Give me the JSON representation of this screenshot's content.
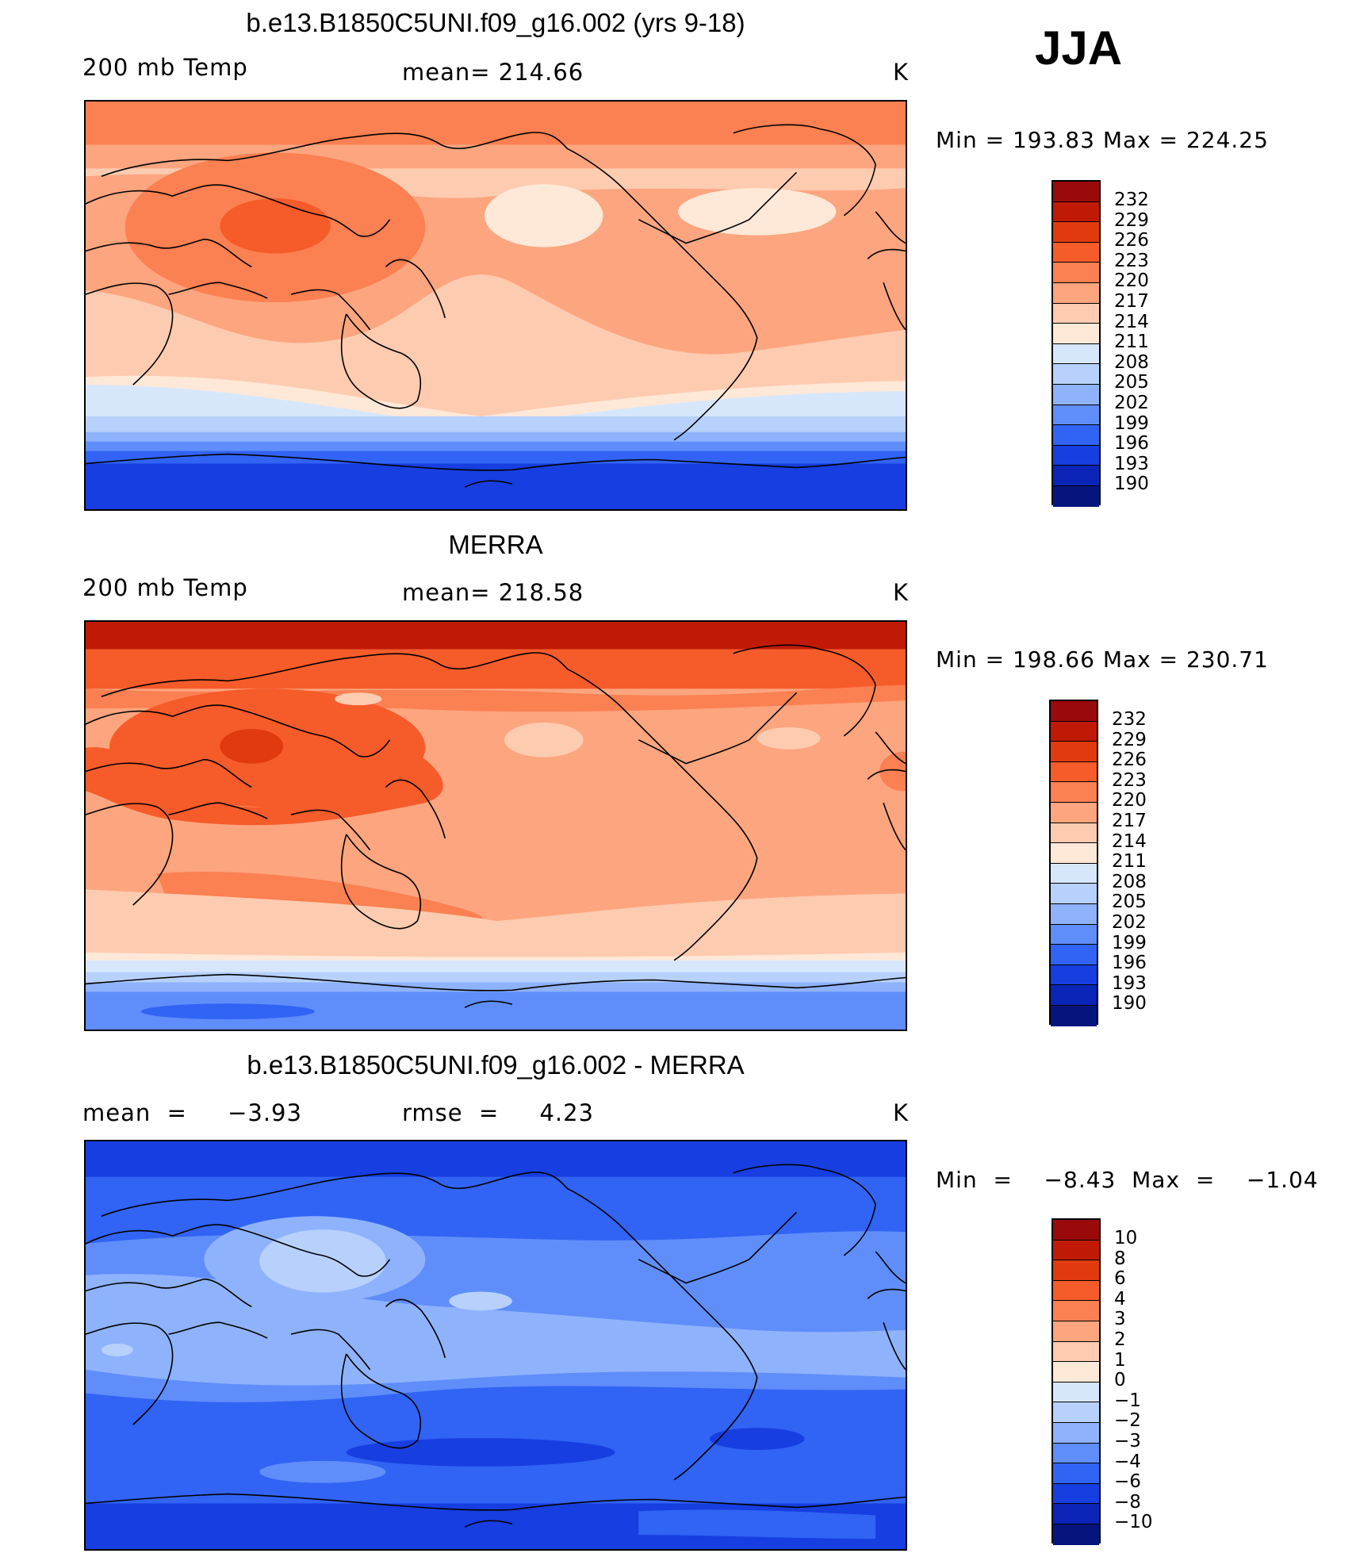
{
  "season": "JJA",
  "panels": [
    {
      "title": "b.e13.B1850C5UNI.f09_g16.002 (yrs 9-18)",
      "variable": "200 mb Temp",
      "stat_text": "mean=  214.66",
      "units": "K",
      "minmax": "Min  =  193.83  Max  =  224.25",
      "colorbar_levels": [
        "232",
        "229",
        "226",
        "223",
        "220",
        "217",
        "214",
        "211",
        "208",
        "205",
        "202",
        "199",
        "196",
        "193",
        "190"
      ]
    },
    {
      "title": "MERRA",
      "variable": "200 mb Temp",
      "stat_text": "mean=  218.58",
      "units": "K",
      "minmax": "Min  =  198.66  Max  =  230.71",
      "colorbar_levels": [
        "232",
        "229",
        "226",
        "223",
        "220",
        "217",
        "214",
        "211",
        "208",
        "205",
        "202",
        "199",
        "196",
        "193",
        "190"
      ]
    },
    {
      "title": "b.e13.B1850C5UNI.f09_g16.002 - MERRA",
      "mean_text": "mean  =     −3.93",
      "rmse_text": "rmse  =     4.23",
      "units": "K",
      "minmax": "Min  =    −8.43  Max  =    −1.04",
      "colorbar_levels": [
        "10",
        "8",
        "6",
        "4",
        "3",
        "2",
        "1",
        "0",
        "−1",
        "−2",
        "−3",
        "−4",
        "−6",
        "−8",
        "−10"
      ]
    }
  ],
  "colorbar_colors": [
    "#9b0a0a",
    "#c01a04",
    "#e03a0e",
    "#f65b2a",
    "#fb8052",
    "#fca57f",
    "#fdcbb0",
    "#fee8d8",
    "#d7e7fb",
    "#b7d1fc",
    "#8fb2fc",
    "#5f8efa",
    "#3163f4",
    "#163ee0",
    "#0a24b8",
    "#06157e"
  ]
}
